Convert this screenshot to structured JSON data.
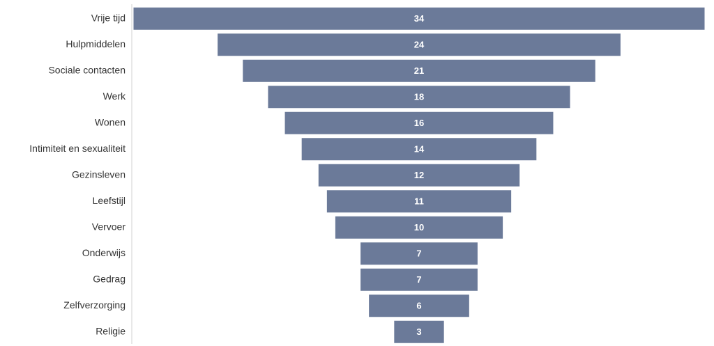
{
  "chart_data": {
    "type": "funnel",
    "categories": [
      "Vrije tijd",
      "Hulpmiddelen",
      "Sociale contacten",
      "Werk",
      "Wonen",
      "Intimiteit en sexualiteit",
      "Gezinsleven",
      "Leefstijl",
      "Vervoer",
      "Onderwijs",
      "Gedrag",
      "Zelfverzorging",
      "Religie"
    ],
    "values": [
      34,
      24,
      21,
      18,
      16,
      14,
      12,
      11,
      10,
      7,
      7,
      6,
      3
    ],
    "color": "#6b7a99"
  }
}
